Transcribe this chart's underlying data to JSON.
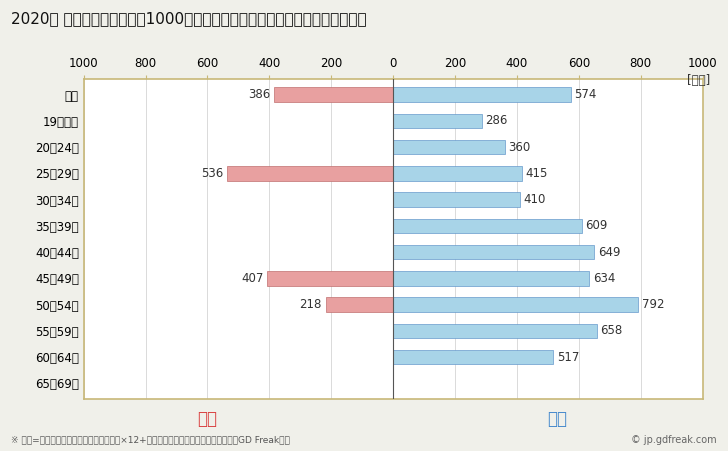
{
  "title": "2020年 民間企業（従業者数1000人以上）フルタイム労働者の男女別平均年収",
  "categories": [
    "全体",
    "19歳以下",
    "20〜24歳",
    "25〜29歳",
    "30〜34歳",
    "35〜39歳",
    "40〜44歳",
    "45〜49歳",
    "50〜54歳",
    "55〜59歳",
    "60〜64歳",
    "65〜69歳"
  ],
  "female_values": [
    386,
    0,
    0,
    536,
    0,
    0,
    0,
    407,
    218,
    0,
    0,
    0
  ],
  "male_values": [
    574,
    286,
    360,
    415,
    410,
    609,
    649,
    634,
    792,
    658,
    517,
    0
  ],
  "female_color": "#e8a0a0",
  "male_color": "#a8d4e8",
  "female_label": "女性",
  "male_label": "男性",
  "female_label_color": "#d94040",
  "male_label_color": "#4488cc",
  "xlim": [
    -1000,
    1000
  ],
  "xticks": [
    -1000,
    -800,
    -600,
    -400,
    -200,
    0,
    200,
    400,
    600,
    800,
    1000
  ],
  "xticklabels": [
    "1000",
    "800",
    "600",
    "400",
    "200",
    "0",
    "200",
    "400",
    "600",
    "800",
    "1000"
  ],
  "ylabel_unit": "[万円]",
  "footnote": "※ 年収=「きまって支給する現金給与額」×12+「年間賞与その他特別給与額」としてGD Freak推計",
  "copyright": "© jp.gdfreak.com",
  "bg_color": "#f0f0ea",
  "plot_bg_color": "#ffffff",
  "grid_color": "#cccccc",
  "border_color": "#c8b878",
  "title_fontsize": 11,
  "tick_fontsize": 8.5,
  "bar_label_fontsize": 8.5,
  "legend_fontsize": 12,
  "footnote_fontsize": 6.5,
  "copyright_fontsize": 7,
  "bar_height": 0.55
}
